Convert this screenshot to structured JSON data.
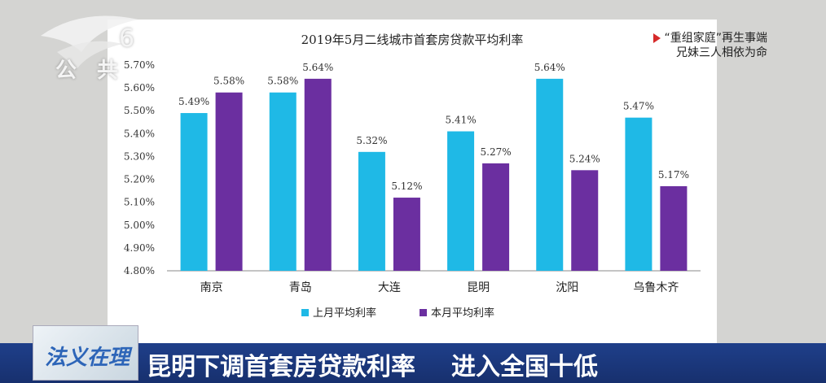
{
  "channel": {
    "name": "公 共",
    "number": "6"
  },
  "promo": {
    "line1": "“重组家庭”再生事端",
    "line2": "兄妹三人相依为命"
  },
  "headline": {
    "part1": "昆明下调首套房贷款利率",
    "part2": "进入全国十低"
  },
  "show_logo": "法义在理",
  "colors": {
    "last_month": "#1fb9e6",
    "this_month": "#6b2fa0"
  },
  "chart_data": {
    "type": "bar",
    "title": "2019年5月二线城市首套房贷款平均利率",
    "categories": [
      "南京",
      "青岛",
      "大连",
      "昆明",
      "沈阳",
      "乌鲁木齐"
    ],
    "series": [
      {
        "name": "上月平均利率",
        "values": [
          5.49,
          5.58,
          5.32,
          5.41,
          5.64,
          5.47
        ],
        "labels": [
          "5.49%",
          "5.58%",
          "5.32%",
          "5.41%",
          "5.64%",
          "5.47%"
        ]
      },
      {
        "name": "本月平均利率",
        "values": [
          5.58,
          5.64,
          5.12,
          5.27,
          5.24,
          5.17
        ],
        "labels": [
          "5.58%",
          "5.64%",
          "5.12%",
          "5.27%",
          "5.24%",
          "5.17%"
        ]
      }
    ],
    "yticks": [
      4.8,
      4.9,
      5.0,
      5.1,
      5.2,
      5.3,
      5.4,
      5.5,
      5.6,
      5.7
    ],
    "ytick_labels": [
      "4.80%",
      "4.90%",
      "5.00%",
      "5.10%",
      "5.20%",
      "5.30%",
      "5.40%",
      "5.50%",
      "5.60%",
      "5.70%"
    ],
    "ylim": [
      4.8,
      5.7
    ],
    "grid": false,
    "legend": "bottom"
  }
}
